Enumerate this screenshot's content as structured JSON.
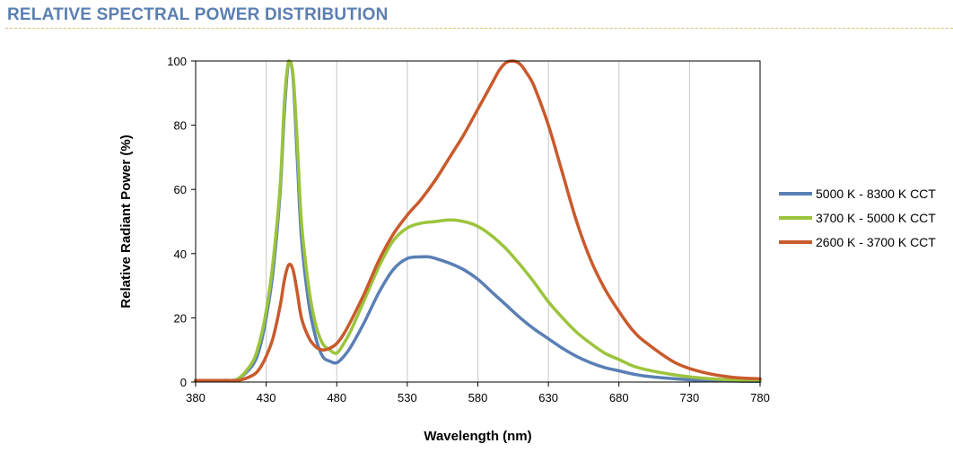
{
  "header": {
    "title": "RELATIVE SPECTRAL POWER DISTRIBUTION",
    "title_color": "#5b7fb1"
  },
  "chart_data": {
    "type": "line",
    "title": "RELATIVE SPECTRAL POWER DISTRIBUTION",
    "xlabel": "Wavelength (nm)",
    "ylabel": "Relative Radiant Power (%)",
    "xlim": [
      380,
      780
    ],
    "ylim": [
      0,
      100
    ],
    "xticks": [
      380,
      430,
      480,
      530,
      580,
      630,
      680,
      730,
      780
    ],
    "yticks": [
      0,
      20,
      40,
      60,
      80,
      100
    ],
    "grid": "vertical",
    "legend_position": "right",
    "series": [
      {
        "name": "5000 K - 8300 K CCT",
        "color": "#5a7fb5",
        "x": [
          380,
          400,
          410,
          420,
          425,
          430,
          435,
          440,
          443,
          446,
          449,
          452,
          455,
          460,
          465,
          470,
          475,
          480,
          485,
          490,
          500,
          510,
          520,
          530,
          540,
          545,
          550,
          560,
          570,
          580,
          590,
          600,
          610,
          620,
          630,
          640,
          650,
          660,
          670,
          680,
          690,
          700,
          720,
          740,
          760,
          780
        ],
        "y": [
          0.5,
          0.5,
          1,
          5,
          10,
          20,
          35,
          60,
          85,
          100,
          95,
          70,
          45,
          25,
          14,
          8,
          6.5,
          6,
          8,
          11,
          19,
          28,
          35,
          38.5,
          39,
          39,
          38.5,
          37,
          35,
          32,
          28,
          24,
          20,
          16.5,
          13.5,
          10.5,
          8,
          6,
          4.5,
          3.5,
          2.5,
          1.8,
          1,
          0.5,
          0.3,
          0.2
        ]
      },
      {
        "name": "3700 K - 5000 K CCT",
        "color": "#9cc43c",
        "x": [
          380,
          400,
          410,
          420,
          425,
          430,
          435,
          440,
          443,
          446,
          449,
          452,
          455,
          460,
          465,
          470,
          475,
          480,
          485,
          490,
          500,
          510,
          520,
          530,
          540,
          550,
          560,
          570,
          580,
          590,
          600,
          610,
          620,
          630,
          640,
          650,
          660,
          670,
          680,
          690,
          700,
          720,
          740,
          760,
          780
        ],
        "y": [
          0.5,
          0.5,
          1,
          6,
          12,
          22,
          38,
          62,
          88,
          100,
          96,
          75,
          50,
          30,
          18,
          12,
          10,
          9,
          12,
          16,
          26,
          36,
          44,
          48,
          49.5,
          50,
          50.5,
          50,
          48.5,
          45.5,
          41.5,
          36.5,
          31,
          25,
          20,
          15.5,
          12,
          9,
          7,
          5,
          3.8,
          2.2,
          1.2,
          0.7,
          0.4
        ]
      },
      {
        "name": "2600 K - 3700 K CCT",
        "color": "#c95a2c",
        "x": [
          380,
          400,
          410,
          420,
          425,
          430,
          435,
          440,
          443,
          446,
          449,
          452,
          455,
          460,
          465,
          470,
          475,
          480,
          485,
          490,
          500,
          510,
          520,
          530,
          540,
          550,
          560,
          570,
          580,
          590,
          595,
          600,
          605,
          610,
          615,
          620,
          630,
          640,
          650,
          660,
          670,
          680,
          690,
          700,
          720,
          740,
          760,
          780
        ],
        "y": [
          0.5,
          0.5,
          0.5,
          2,
          4,
          8,
          14,
          24,
          32,
          36.5,
          35,
          28,
          20,
          14,
          11,
          10,
          10.5,
          12,
          15,
          19,
          28,
          38,
          46,
          52,
          57,
          63,
          70,
          77,
          85,
          93,
          97,
          99.5,
          100,
          99,
          96,
          92,
          80,
          65,
          50,
          38,
          29,
          22,
          16,
          12,
          6,
          3,
          1.5,
          1
        ]
      }
    ]
  }
}
